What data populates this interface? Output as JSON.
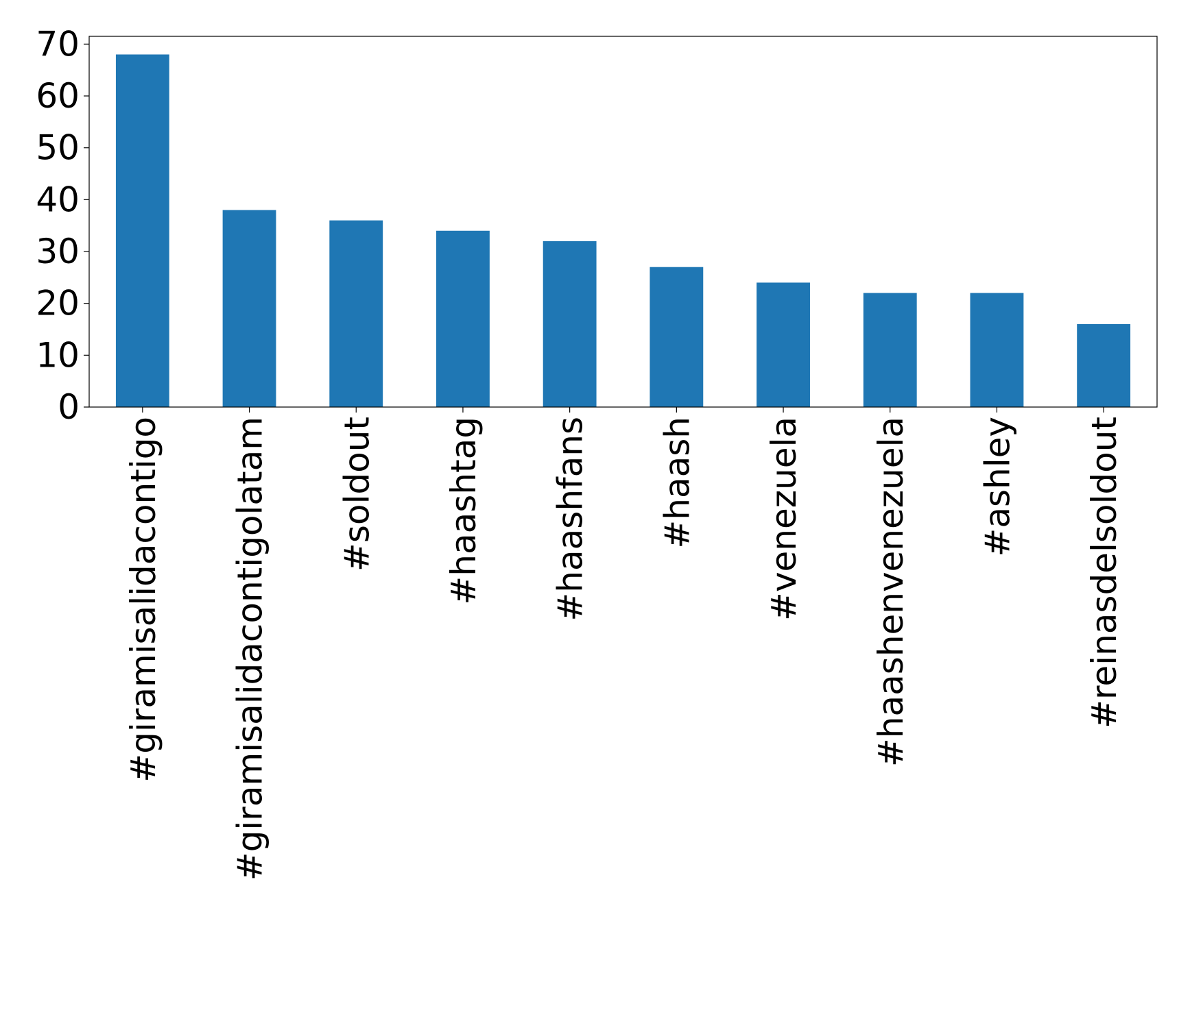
{
  "chart_data": {
    "type": "bar",
    "title": "",
    "xlabel": "",
    "ylabel": "",
    "categories": [
      "#giramisalidacontigo",
      "#giramisalidacontigolatam",
      "#soldout",
      "#haashtag",
      "#haashfans",
      "#haash",
      "#venezuela",
      "#haashenvenezuela",
      "#ashley",
      "#reinasdelsoldout"
    ],
    "values": [
      68,
      38,
      36,
      34,
      32,
      27,
      24,
      22,
      22,
      16
    ],
    "ylim": [
      0,
      71.5
    ],
    "yticks": [
      0,
      10,
      20,
      30,
      40,
      50,
      60,
      70
    ],
    "grid": false,
    "bar_color": "#1f77b4"
  }
}
